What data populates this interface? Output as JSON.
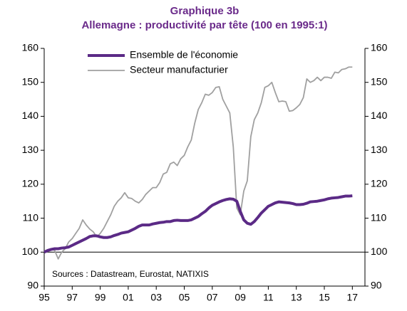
{
  "chart_data": {
    "type": "line",
    "title": "Graphique 3b",
    "subtitle": "Allemagne : productivité par tête (100 en 1995:1)",
    "annotation": "Sources : Datastream, Eurostat, NATIXIS",
    "x": [
      1995,
      1995.25,
      1995.5,
      1995.75,
      1996,
      1996.25,
      1996.5,
      1996.75,
      1997,
      1997.25,
      1997.5,
      1997.75,
      1998,
      1998.25,
      1998.5,
      1998.75,
      1999,
      1999.25,
      1999.5,
      1999.75,
      2000,
      2000.25,
      2000.5,
      2000.75,
      2001,
      2001.25,
      2001.5,
      2001.75,
      2002,
      2002.25,
      2002.5,
      2002.75,
      2003,
      2003.25,
      2003.5,
      2003.75,
      2004,
      2004.25,
      2004.5,
      2004.75,
      2005,
      2005.25,
      2005.5,
      2005.75,
      2006,
      2006.25,
      2006.5,
      2006.75,
      2007,
      2007.25,
      2007.5,
      2007.75,
      2008,
      2008.25,
      2008.5,
      2008.75,
      2009,
      2009.25,
      2009.5,
      2009.75,
      2010,
      2010.25,
      2010.5,
      2010.75,
      2011,
      2011.25,
      2011.5,
      2011.75,
      2012,
      2012.25,
      2012.5,
      2012.75,
      2013,
      2013.25,
      2013.5,
      2013.75,
      2014,
      2014.25,
      2014.5,
      2014.75,
      2015,
      2015.25,
      2015.5,
      2015.75,
      2016,
      2016.25,
      2016.5,
      2016.75,
      2017
    ],
    "series": [
      {
        "name": "Ensemble de l'économie",
        "color": "#5b2a86",
        "width": 4,
        "values": [
          100,
          100.5,
          100.8,
          101,
          101,
          101.2,
          101.3,
          101.5,
          102,
          102.5,
          103,
          103.5,
          104,
          104.6,
          104.8,
          104.8,
          104.5,
          104.3,
          104.3,
          104.5,
          104.9,
          105.2,
          105.6,
          105.8,
          106,
          106.5,
          107,
          107.6,
          108,
          108,
          108,
          108.3,
          108.5,
          108.7,
          108.8,
          109,
          109,
          109.3,
          109.4,
          109.3,
          109.3,
          109.3,
          109.5,
          110,
          110.5,
          111.3,
          112,
          113,
          113.8,
          114.3,
          114.8,
          115.2,
          115.5,
          115.7,
          115.6,
          115,
          112,
          109.5,
          108.5,
          108.2,
          109,
          110.2,
          111.5,
          112.5,
          113.5,
          114,
          114.5,
          114.8,
          114.7,
          114.6,
          114.5,
          114.3,
          114,
          114,
          114.1,
          114.4,
          114.8,
          114.9,
          115,
          115.2,
          115.4,
          115.7,
          115.9,
          116,
          116.1,
          116.3,
          116.5,
          116.5,
          116.6
        ]
      },
      {
        "name": "Secteur manufacturier",
        "color": "#a0a0a0",
        "width": 1.8,
        "values": [
          100,
          100.5,
          101,
          100.5,
          98,
          100,
          101,
          103,
          104,
          105.5,
          107,
          109.5,
          108,
          106.8,
          106,
          104.5,
          105.5,
          107,
          109,
          111,
          113.5,
          115,
          116,
          117.5,
          116,
          115.8,
          115,
          114.5,
          115.5,
          117,
          118,
          119,
          119,
          120.5,
          123,
          123.5,
          126,
          126.5,
          125.5,
          127.5,
          128.5,
          131,
          133,
          138,
          142,
          144,
          146.5,
          146.2,
          147,
          148.5,
          148.7,
          145,
          143,
          141,
          131,
          113,
          111,
          118,
          121,
          134,
          139,
          141,
          144,
          148.5,
          149,
          150,
          147,
          144.3,
          144.5,
          144.3,
          141.5,
          141.7,
          142.5,
          143.5,
          145.5,
          151,
          150,
          150.5,
          151.5,
          150.5,
          151.5,
          151.5,
          151.2,
          153,
          152.8,
          153.8,
          154,
          154.5,
          154.5
        ]
      }
    ],
    "xlim": [
      1995,
      2017.9
    ],
    "xticks": [
      {
        "value": 1995,
        "label": "95"
      },
      {
        "value": 1997,
        "label": "97"
      },
      {
        "value": 1999,
        "label": "99"
      },
      {
        "value": 2001,
        "label": "01"
      },
      {
        "value": 2003,
        "label": "03"
      },
      {
        "value": 2005,
        "label": "05"
      },
      {
        "value": 2007,
        "label": "07"
      },
      {
        "value": 2009,
        "label": "09"
      },
      {
        "value": 2011,
        "label": "11"
      },
      {
        "value": 2013,
        "label": "13"
      },
      {
        "value": 2015,
        "label": "15"
      },
      {
        "value": 2017,
        "label": "17"
      }
    ],
    "ylim": [
      90,
      160
    ],
    "yticks": [
      90,
      100,
      110,
      120,
      130,
      140,
      150,
      160
    ],
    "y2lim": [
      90,
      160
    ],
    "y2ticks": [
      90,
      100,
      110,
      120,
      130,
      140,
      150,
      160
    ],
    "reference_line": 100,
    "legend": "upper left"
  }
}
